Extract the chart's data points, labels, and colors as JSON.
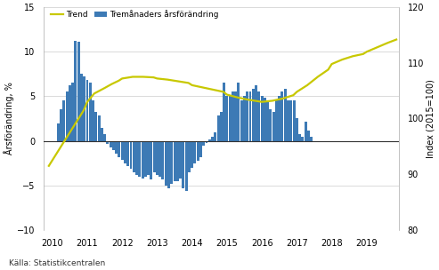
{
  "ylabel_left": "Årsförändring, %",
  "ylabel_right": "Index (2015=100)",
  "source": "Källa: Statistikcentralen",
  "ylim_left": [
    -10,
    15
  ],
  "ylim_right": [
    80,
    120
  ],
  "xlim": [
    2009.75,
    2019.92
  ],
  "bar_color": "#3d7ab5",
  "trend_color": "#c8c800",
  "bar_color_alpha": 1.0,
  "bar_data": {
    "start_year": 2010,
    "start_month": 3,
    "values": [
      2.0,
      3.5,
      4.5,
      5.5,
      6.2,
      6.5,
      11.2,
      11.1,
      7.5,
      7.2,
      6.8,
      6.5,
      4.5,
      3.2,
      2.8,
      1.5,
      0.8,
      -0.3,
      -0.7,
      -1.0,
      -1.4,
      -1.8,
      -2.1,
      -2.5,
      -2.8,
      -3.1,
      -3.5,
      -3.8,
      -4.0,
      -4.2,
      -4.0,
      -3.8,
      -4.3,
      -3.5,
      -3.8,
      -4.0,
      -4.3,
      -5.0,
      -5.3,
      -4.8,
      -4.5,
      -4.5,
      -4.2,
      -5.3,
      -5.6,
      -3.5,
      -3.0,
      -2.5,
      -2.2,
      -1.8,
      -0.5,
      -0.2,
      0.2,
      0.5,
      1.0,
      2.8,
      3.2,
      6.5,
      5.0,
      5.0,
      5.5,
      5.5,
      6.5,
      4.5,
      5.0,
      5.5,
      5.5,
      5.8,
      6.2,
      5.5,
      5.0,
      4.8,
      4.5,
      3.5,
      3.2,
      4.5,
      5.0,
      5.5,
      5.8,
      4.5,
      4.5,
      4.5,
      2.5,
      0.8,
      0.5,
      2.2,
      1.2,
      0.5
    ]
  },
  "trend_data": {
    "x": [
      2009.9,
      2010.1,
      2010.3,
      2010.5,
      2010.7,
      2010.9,
      2011.0,
      2011.2,
      2011.5,
      2011.7,
      2011.9,
      2012.0,
      2012.3,
      2012.6,
      2012.9,
      2013.0,
      2013.3,
      2013.6,
      2013.9,
      2014.0,
      2014.3,
      2014.6,
      2014.9,
      2015.0,
      2015.3,
      2015.6,
      2015.9,
      2016.0,
      2016.3,
      2016.6,
      2016.9,
      2017.0,
      2017.3,
      2017.6,
      2017.9,
      2018.0,
      2018.3,
      2018.6,
      2018.9,
      2019.0,
      2019.3,
      2019.6,
      2019.85
    ],
    "index_values": [
      91.5,
      93.5,
      95.5,
      97.5,
      99.5,
      101.5,
      103.0,
      104.5,
      105.5,
      106.2,
      106.8,
      107.2,
      107.5,
      107.5,
      107.4,
      107.2,
      107.0,
      106.7,
      106.4,
      106.0,
      105.6,
      105.2,
      104.8,
      104.3,
      103.8,
      103.4,
      103.1,
      103.0,
      103.2,
      103.6,
      104.2,
      104.8,
      106.0,
      107.5,
      108.8,
      109.8,
      110.6,
      111.2,
      111.6,
      112.0,
      112.8,
      113.6,
      114.2
    ]
  },
  "xtick_years": [
    2010,
    2011,
    2012,
    2013,
    2014,
    2015,
    2016,
    2017,
    2018,
    2019
  ],
  "yticks_left": [
    -10,
    -5,
    0,
    5,
    10,
    15
  ],
  "yticks_right": [
    80,
    90,
    100,
    110,
    120
  ],
  "background_color": "#ffffff",
  "grid_color": "#cccccc"
}
